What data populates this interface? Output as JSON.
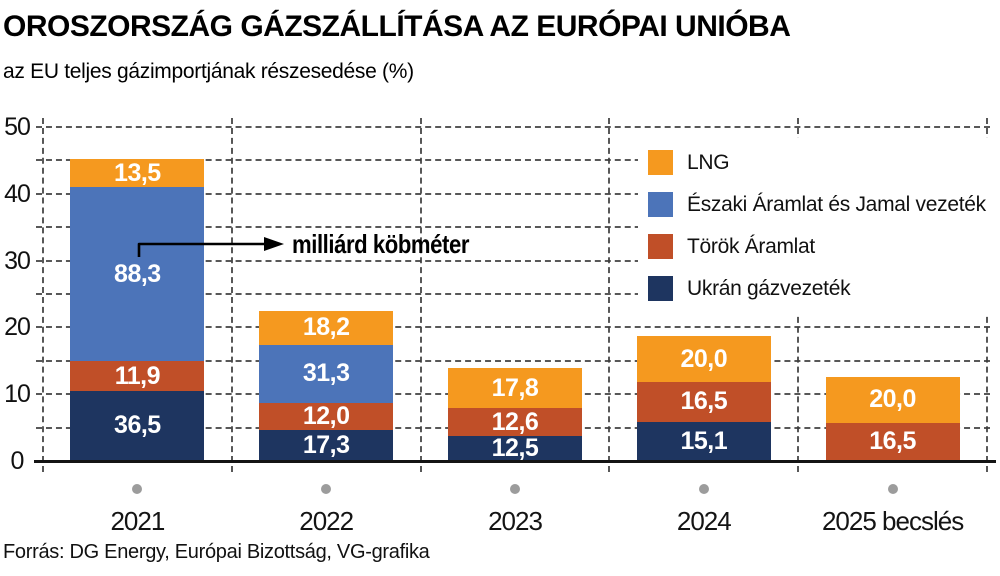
{
  "title": "OROSZORSZÁG GÁZSZÁLLÍTÁSA AZ EURÓPAI UNIÓBA",
  "subtitle": "az EU teljes gázimportjának részesedése (%)",
  "annotation": {
    "text": "milliárd köbméter"
  },
  "source": "Forrás: DG Energy, Európai Bizottság, VG-grafika",
  "colors": {
    "lng_orange": "#F5991F",
    "nord_stream_blue": "#4C74B9",
    "turk_stream_rust": "#C04F28",
    "ukraine_navy": "#1E3560",
    "axis": "#141414",
    "grid": "#3c3c3c",
    "marker_dot": "#9c9c9c",
    "bar_value_text": "#ffffff",
    "background": "#ffffff"
  },
  "legend": {
    "items": [
      {
        "label": "LNG",
        "color": "#F5991F"
      },
      {
        "label": "Északi Áramlat és Jamal vezeték",
        "color": "#4C74B9"
      },
      {
        "label": "Török Áramlat",
        "color": "#C04F28"
      },
      {
        "label": "Ukrán gázvezeték",
        "color": "#1E3560"
      }
    ]
  },
  "chart_data": {
    "type": "bar",
    "stacked": true,
    "title": "OROSZORSZÁG GÁZSZÁLLÍTÁSA AZ EURÓPAI UNIÓBA",
    "subtitle_ylabel": "az EU teljes gázimportjának részesedése (%)",
    "categories": [
      "2021",
      "2022",
      "2023",
      "2024",
      "2025 becslés"
    ],
    "y_axis": {
      "min": 0,
      "max": 50,
      "tick_step": 10,
      "grid_step": 5,
      "ticks": [
        0,
        10,
        20,
        30,
        40,
        50
      ],
      "grid_style": "dashed"
    },
    "legend_position": "top-right",
    "annotation": {
      "text": "milliárd köbméter",
      "points_to": "in-bar value labels"
    },
    "series": [
      {
        "name": "Ukrán gázvezeték",
        "color": "#1E3560",
        "values_bcm": [
          36.5,
          17.3,
          12.5,
          15.1,
          null
        ],
        "value_labels": [
          "36,5",
          "17,3",
          "12,5",
          "15,1",
          ""
        ],
        "share_pct_est": [
          10.5,
          4.7,
          3.7,
          5.9,
          0
        ]
      },
      {
        "name": "Török Áramlat",
        "color": "#C04F28",
        "values_bcm": [
          11.9,
          12.0,
          12.6,
          16.5,
          16.5
        ],
        "value_labels": [
          "11,9",
          "12,0",
          "12,6",
          "16,5",
          "16,5"
        ],
        "share_pct_est": [
          4.4,
          4.0,
          4.2,
          5.9,
          5.7
        ]
      },
      {
        "name": "Északi Áramlat és Jamal vezeték",
        "color": "#4C74B9",
        "values_bcm": [
          88.3,
          31.3,
          null,
          null,
          null
        ],
        "value_labels": [
          "88,3",
          "31,3",
          "",
          "",
          ""
        ],
        "share_pct_est": [
          26.1,
          8.7,
          0,
          0,
          0
        ]
      },
      {
        "name": "LNG",
        "color": "#F5991F",
        "values_bcm": [
          13.5,
          18.2,
          17.8,
          20.0,
          20.0
        ],
        "value_labels": [
          "13,5",
          "18,2",
          "17,8",
          "20,0",
          "20,0"
        ],
        "share_pct_est": [
          4.2,
          5.1,
          6.0,
          6.9,
          6.9
        ]
      }
    ],
    "stack_totals_pct_est": [
      45.2,
      22.5,
      13.9,
      18.7,
      12.6
    ]
  }
}
